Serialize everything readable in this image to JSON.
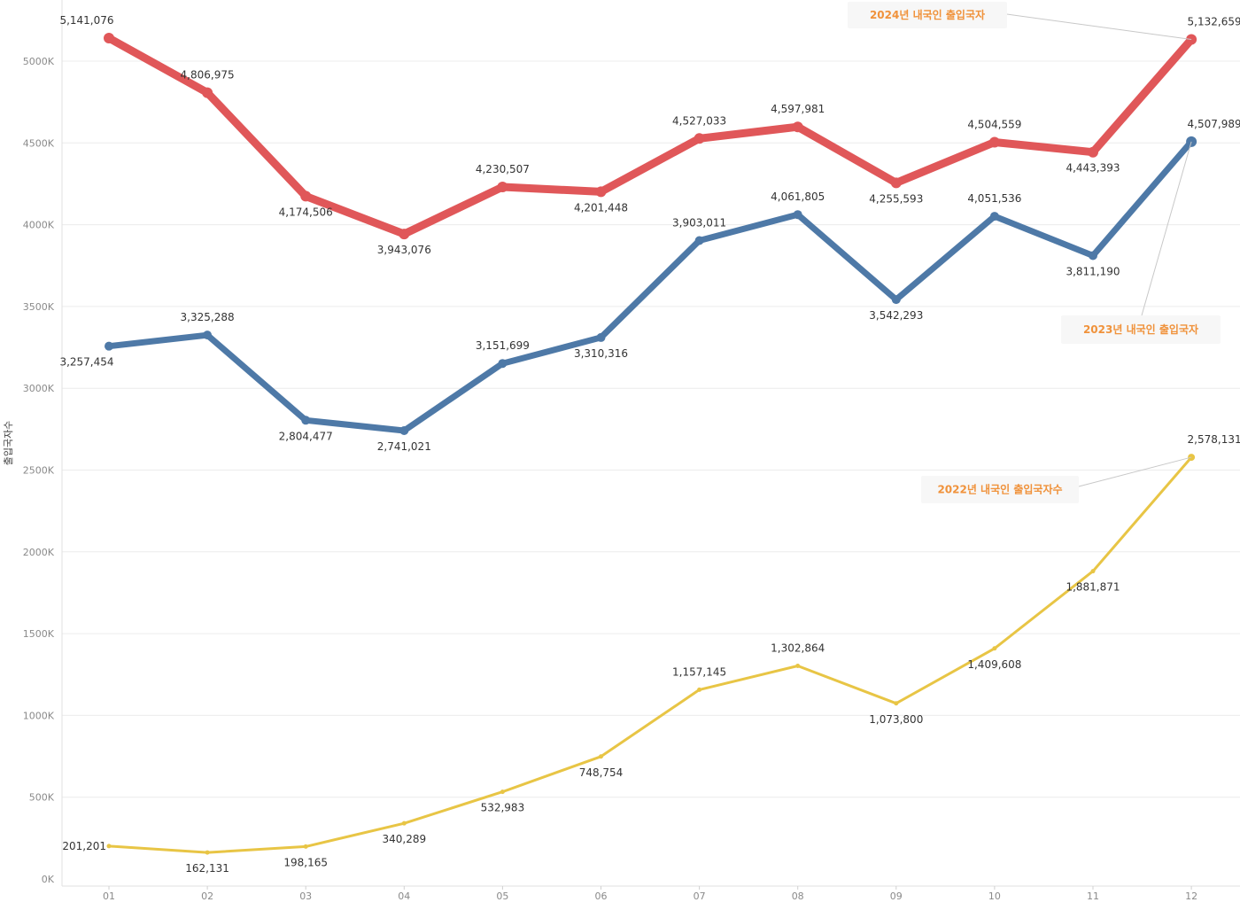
{
  "chart_data": {
    "type": "line",
    "title": "",
    "xlabel": "",
    "ylabel": "출입국자수",
    "categories": [
      "01",
      "02",
      "03",
      "04",
      "05",
      "06",
      "07",
      "08",
      "09",
      "10",
      "11",
      "12"
    ],
    "ylim": [
      0,
      5300000
    ],
    "yticks": [
      {
        "value": 0,
        "label": "0K"
      },
      {
        "value": 500000,
        "label": "500K"
      },
      {
        "value": 1000000,
        "label": "1000K"
      },
      {
        "value": 1500000,
        "label": "1500K"
      },
      {
        "value": 2000000,
        "label": "2000K"
      },
      {
        "value": 2500000,
        "label": "2500K"
      },
      {
        "value": 3000000,
        "label": "3000K"
      },
      {
        "value": 3500000,
        "label": "3500K"
      },
      {
        "value": 4000000,
        "label": "4000K"
      },
      {
        "value": 4500000,
        "label": "4500K"
      },
      {
        "value": 5000000,
        "label": "5000K"
      }
    ],
    "grid": true,
    "series": [
      {
        "name": "2024년 내국인 출입국자",
        "color": "#e05759",
        "values": [
          5141076,
          4806975,
          4174506,
          3943076,
          4230507,
          4201448,
          4527033,
          4597981,
          4255593,
          4504559,
          4443393,
          5132659
        ],
        "labels": [
          "5,141,076",
          "4,806,975",
          "4,174,506",
          "3,943,076",
          "4,230,507",
          "4,201,448",
          "4,527,033",
          "4,597,981",
          "4,255,593",
          "4,504,559",
          "4,443,393",
          "5,132,659"
        ],
        "label_pos": [
          "above",
          "above",
          "below",
          "below",
          "above",
          "below",
          "above",
          "above",
          "below",
          "above",
          "below",
          "above"
        ]
      },
      {
        "name": "2023년 내국인 출입국자",
        "color": "#4e79a7",
        "values": [
          3257454,
          3325288,
          2804477,
          2741021,
          3151699,
          3310316,
          3903011,
          4061805,
          3542293,
          4051536,
          3811190,
          4507989
        ],
        "labels": [
          "3,257,454",
          "3,325,288",
          "2,804,477",
          "2,741,021",
          "3,151,699",
          "3,310,316",
          "3,903,011",
          "4,061,805",
          "3,542,293",
          "4,051,536",
          "3,811,190",
          "4,507,989"
        ],
        "label_pos": [
          "below",
          "above",
          "below",
          "below",
          "above",
          "below",
          "above",
          "above",
          "below",
          "above",
          "below",
          "above"
        ]
      },
      {
        "name": "2022년 내국인 출입국자수",
        "color": "#e8c545",
        "values": [
          201201,
          162131,
          198165,
          340289,
          532983,
          748754,
          1157145,
          1302864,
          1073800,
          1409608,
          1881871,
          2578131
        ],
        "labels": [
          "201,201",
          "162,131",
          "198,165",
          "340,289",
          "532,983",
          "748,754",
          "1,157,145",
          "1,302,864",
          "1,073,800",
          "1,409,608",
          "1,881,871",
          "2,578,131"
        ],
        "label_pos": [
          "left",
          "below",
          "below",
          "below",
          "below",
          "below",
          "above",
          "above",
          "below",
          "below",
          "below",
          "above"
        ]
      }
    ]
  }
}
